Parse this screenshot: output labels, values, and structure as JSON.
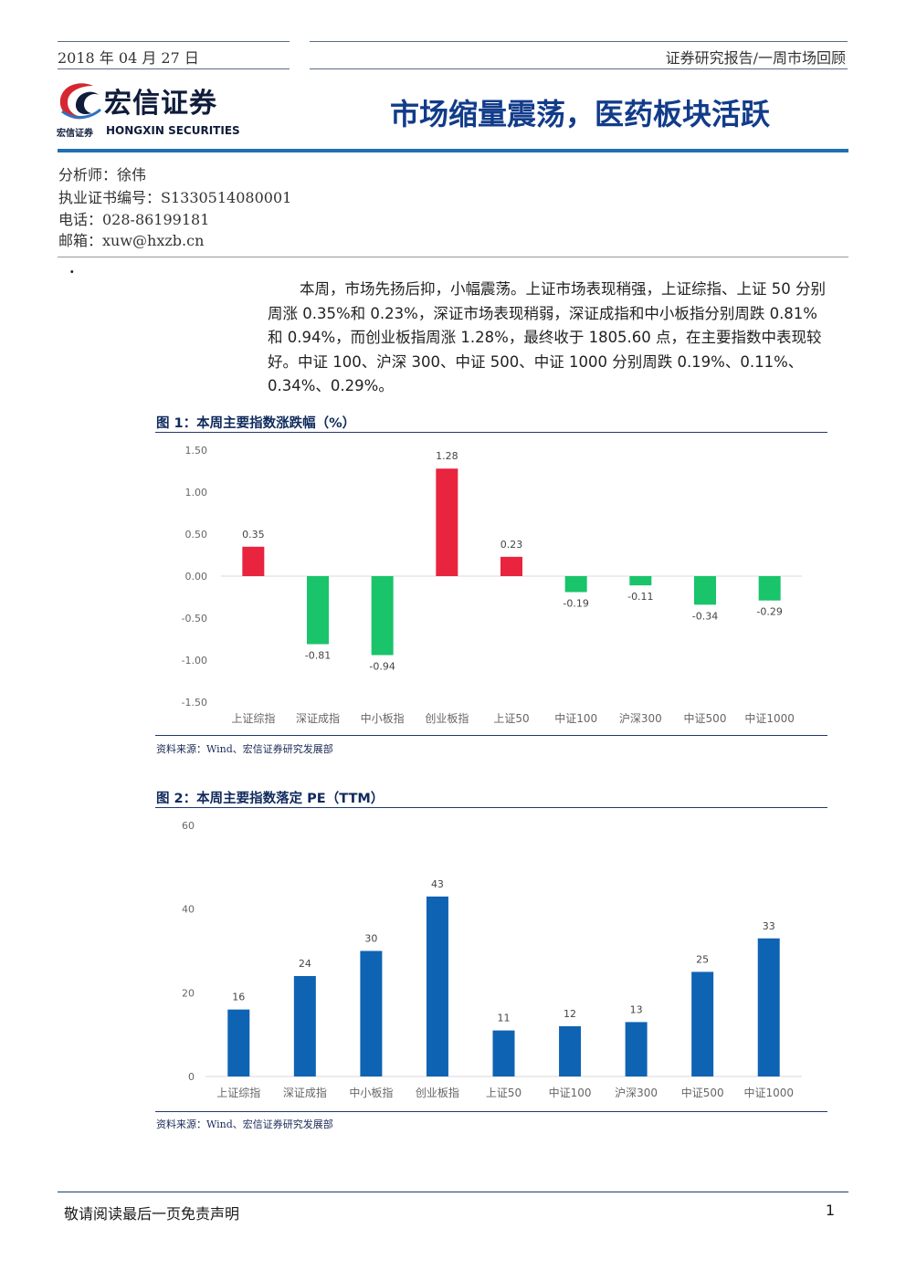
{
  "header": {
    "date": "2018 年 04 月 27 日",
    "category": "证券研究报告/一周市场回顾"
  },
  "logo": {
    "name_cn": "宏信证券",
    "name_en": "HONGXIN SECURITIES",
    "small_cn": "宏信证券",
    "colors": {
      "red": "#d7262f",
      "navy": "#0f1c3a",
      "blue": "#1f6fb2"
    }
  },
  "report": {
    "title": "市场缩量震荡，医药板块活跃"
  },
  "analyst": {
    "name_line": "分析师：徐伟",
    "cert_line": "执业证书编号：S1330514080001",
    "phone_line": "电话：028-86199181",
    "email_line": "邮箱：xuw@hxzb.cn"
  },
  "bullet": "·",
  "summary": "本周，市场先扬后抑，小幅震荡。上证市场表现稍强，上证综指、上证 50 分别周涨 0.35%和 0.23%，深证市场表现稍弱，深证成指和中小板指分别周跌 0.81%和 0.94%，而创业板指周涨 1.28%，最终收于 1805.60 点，在主要指数中表现较好。中证 100、沪深 300、中证 500、中证 1000 分别周跌 0.19%、0.11%、0.34%、0.29%。",
  "figure1": {
    "title": "图 1：本周主要指数涨跌幅（%）",
    "source": "资料来源：Wind、宏信证券研究发展部"
  },
  "figure2": {
    "title": "图 2：本周主要指数落定 PE（TTM）",
    "source": "资料来源：Wind、宏信证券研究发展部"
  },
  "chart_data": [
    {
      "type": "bar",
      "categories": [
        "上证综指",
        "深证成指",
        "中小板指",
        "创业板指",
        "上证50",
        "中证100",
        "沪深300",
        "中证500",
        "中证1000"
      ],
      "values": [
        0.35,
        -0.81,
        -0.94,
        1.28,
        0.23,
        -0.19,
        -0.11,
        -0.34,
        -0.29
      ],
      "labels": [
        "0.35",
        "-0.81",
        "-0.94",
        "1.28",
        "0.23",
        "-0.19",
        "-0.11",
        "-0.34",
        "-0.29"
      ],
      "yticks": [
        "1.50",
        "1.00",
        "0.50",
        "0.00",
        "-0.50",
        "-1.00",
        "-1.50"
      ],
      "ylim": [
        -1.5,
        1.5
      ],
      "positive_color": "#e8243f",
      "negative_color": "#19c46b",
      "grid": false
    },
    {
      "type": "bar",
      "categories": [
        "上证综指",
        "深证成指",
        "中小板指",
        "创业板指",
        "上证50",
        "中证100",
        "沪深300",
        "中证500",
        "中证1000"
      ],
      "values": [
        16,
        24,
        30,
        43,
        11,
        12,
        13,
        25,
        33
      ],
      "labels": [
        "16",
        "24",
        "30",
        "43",
        "11",
        "12",
        "13",
        "25",
        "33"
      ],
      "yticks": [
        "60",
        "40",
        "20",
        "0"
      ],
      "ylim": [
        0,
        60
      ],
      "bar_color": "#0f63b3",
      "grid": false
    }
  ],
  "footer": {
    "disclaimer": "敬请阅读最后一页免责声明",
    "page": "1"
  }
}
